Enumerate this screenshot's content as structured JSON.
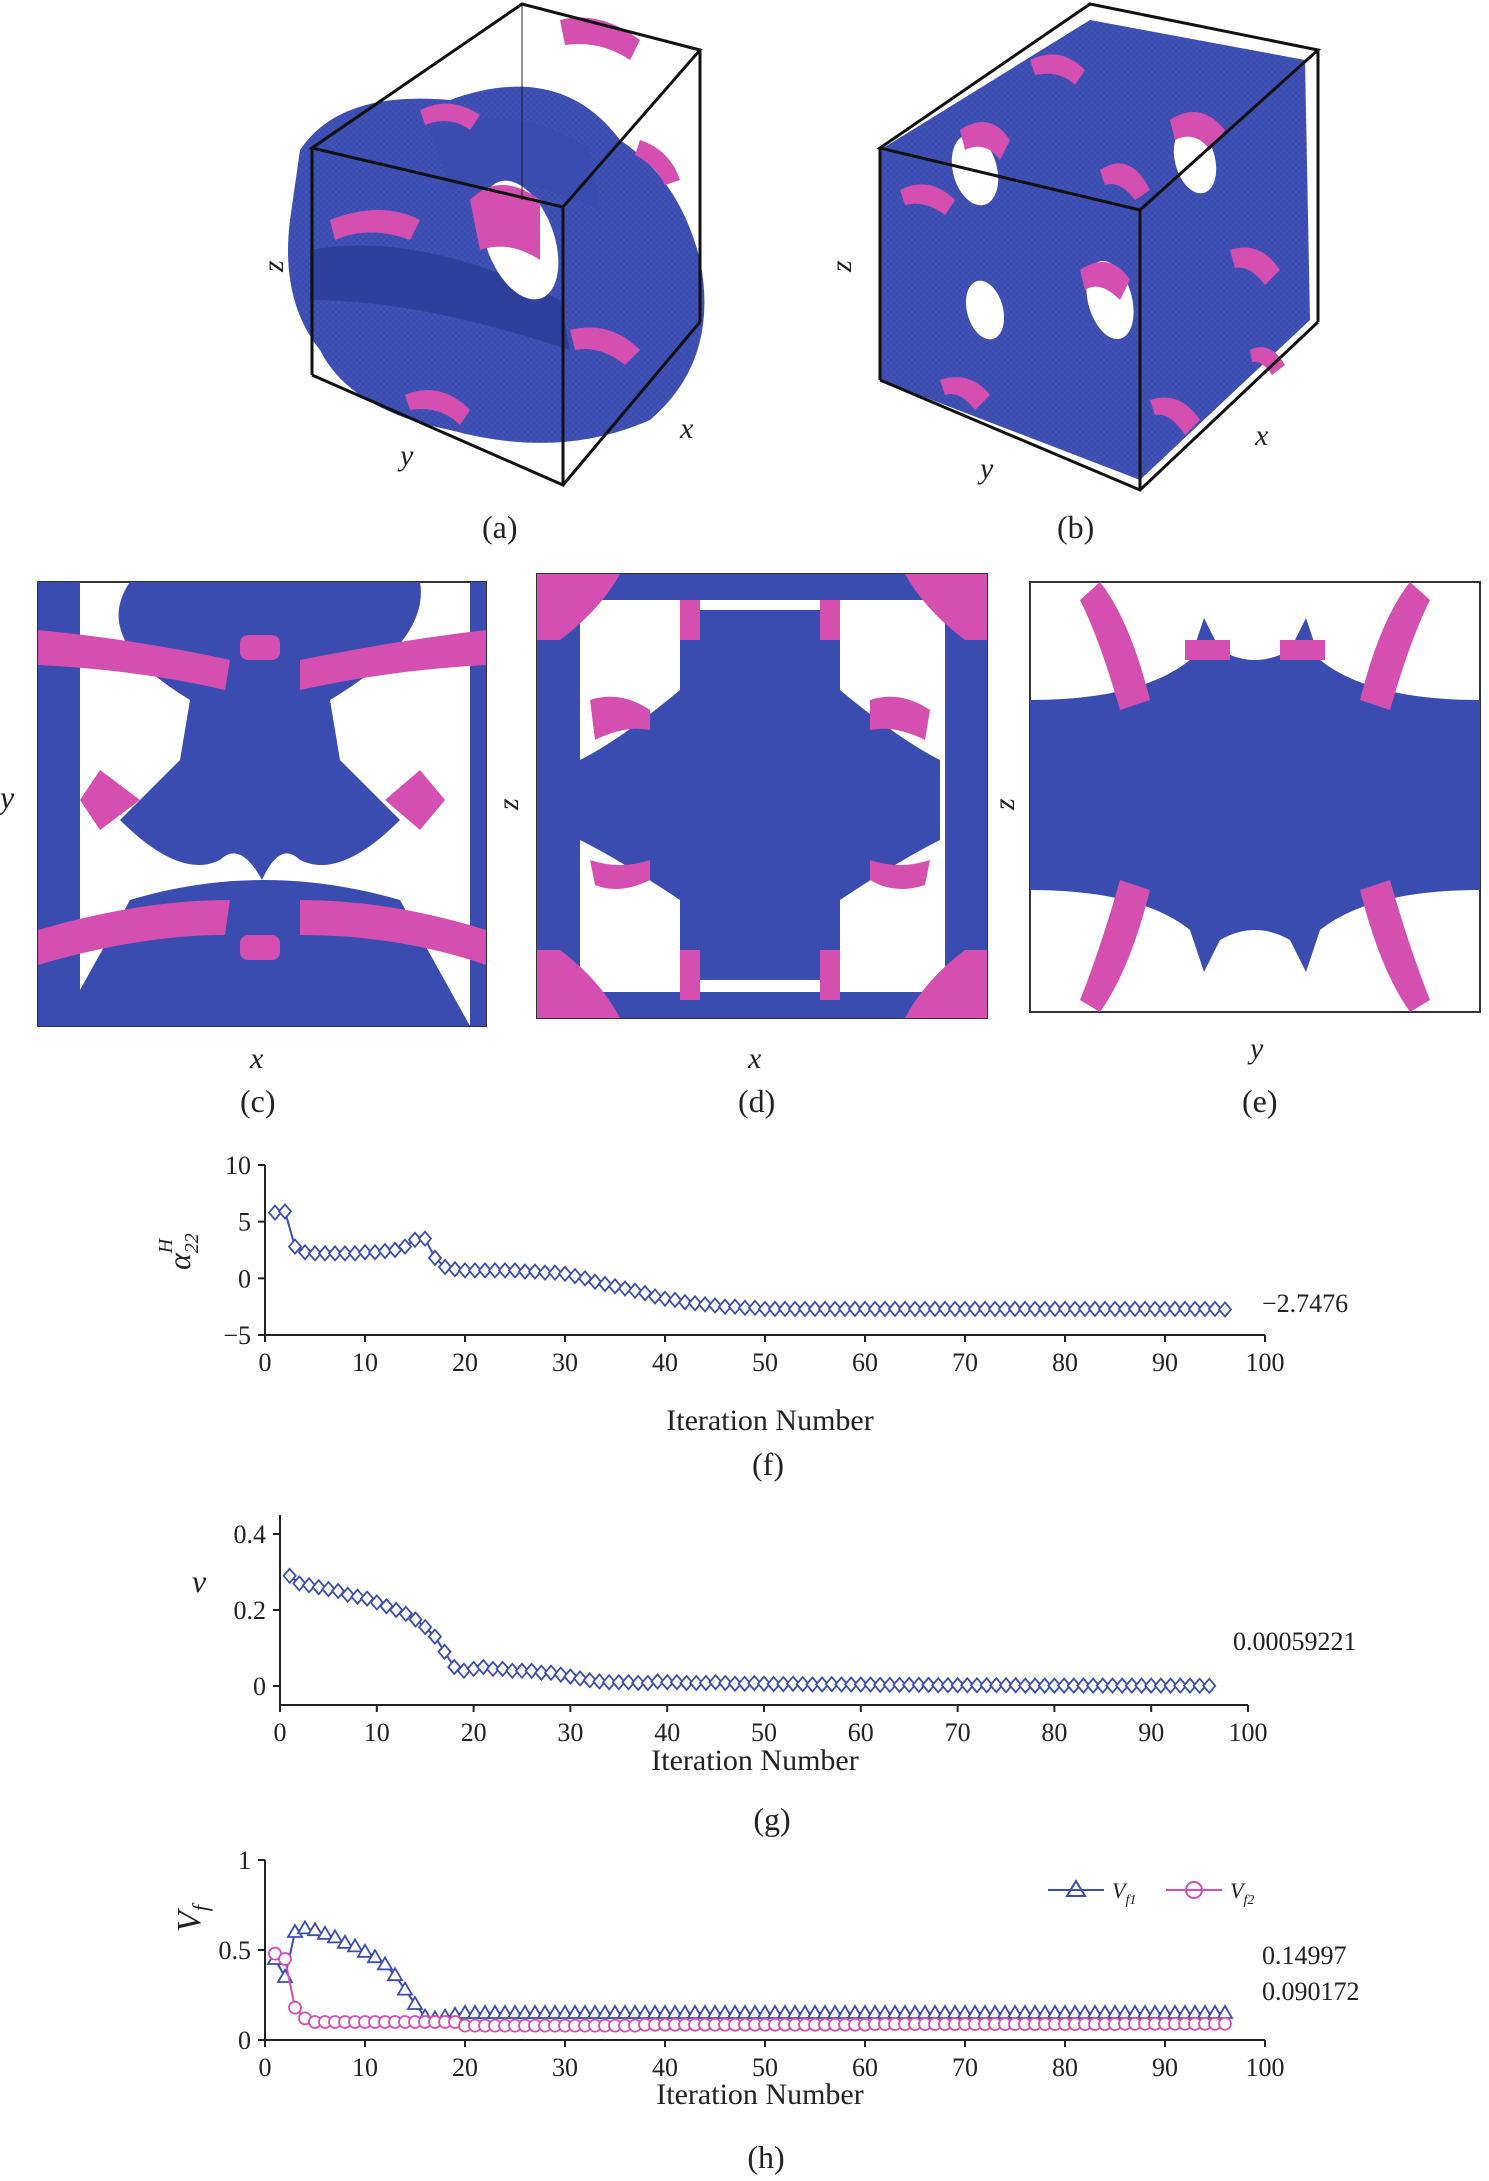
{
  "colors": {
    "phase1": "#3b4cb0",
    "phase2": "#d44fb0",
    "axis": "#222222",
    "box": "#111111"
  },
  "panels": {
    "a": {
      "label": "(a)",
      "axes": {
        "z": "z",
        "y": "y",
        "x": "x"
      }
    },
    "b": {
      "label": "(b)",
      "axes": {
        "z": "z",
        "y": "y",
        "x": "x"
      }
    },
    "c": {
      "label": "(c)",
      "vertical": "y",
      "horizontal": "x"
    },
    "d": {
      "label": "(d)",
      "vertical": "z",
      "horizontal": "x"
    },
    "e": {
      "label": "(e)",
      "vertical": "z",
      "horizontal": "y"
    }
  },
  "chart_data": [
    {
      "id": "f",
      "panel_label": "(f)",
      "type": "line",
      "ylabel": "α22H",
      "ylabel_main": "α",
      "ylabel_sub": "22",
      "ylabel_sup": "H",
      "xlabel": "Iteration Number",
      "xlim": [
        0,
        100
      ],
      "ylim": [
        -5,
        10
      ],
      "xticks": [
        0,
        10,
        20,
        30,
        40,
        50,
        60,
        70,
        80,
        90,
        100
      ],
      "yticks": [
        -5,
        0,
        5,
        10
      ],
      "final_value_label": "−2.7476",
      "series": [
        {
          "name": "α22H",
          "marker": "diamond",
          "color": "#3b4cb0",
          "x": [
            1,
            2,
            3,
            4,
            5,
            6,
            7,
            8,
            9,
            10,
            11,
            12,
            13,
            14,
            15,
            16,
            17,
            18,
            19,
            20,
            21,
            22,
            23,
            24,
            25,
            26,
            27,
            28,
            29,
            30,
            31,
            32,
            33,
            34,
            35,
            36,
            37,
            38,
            39,
            40,
            41,
            42,
            43,
            44,
            45,
            46,
            47,
            48,
            49,
            50,
            51,
            52,
            53,
            54,
            55,
            56,
            57,
            58,
            59,
            60,
            61,
            62,
            63,
            64,
            65,
            66,
            67,
            68,
            69,
            70,
            71,
            72,
            73,
            74,
            75,
            76,
            77,
            78,
            79,
            80,
            81,
            82,
            83,
            84,
            85,
            86,
            87,
            88,
            89,
            90,
            91,
            92,
            93,
            94,
            95,
            96
          ],
          "y": [
            5.8,
            5.9,
            2.8,
            2.3,
            2.2,
            2.2,
            2.2,
            2.2,
            2.2,
            2.3,
            2.3,
            2.4,
            2.5,
            2.8,
            3.4,
            3.5,
            1.8,
            1.0,
            0.8,
            0.7,
            0.7,
            0.7,
            0.7,
            0.7,
            0.7,
            0.6,
            0.6,
            0.5,
            0.5,
            0.4,
            0.2,
            0.0,
            -0.3,
            -0.5,
            -0.7,
            -0.9,
            -1.1,
            -1.3,
            -1.6,
            -1.8,
            -1.9,
            -2.1,
            -2.2,
            -2.3,
            -2.4,
            -2.5,
            -2.5,
            -2.6,
            -2.6,
            -2.7,
            -2.7,
            -2.7,
            -2.7,
            -2.7,
            -2.7,
            -2.7,
            -2.7,
            -2.7,
            -2.7,
            -2.7,
            -2.7,
            -2.7,
            -2.7,
            -2.7,
            -2.7,
            -2.7,
            -2.7,
            -2.7,
            -2.7,
            -2.7,
            -2.7,
            -2.7,
            -2.7,
            -2.7,
            -2.7,
            -2.7,
            -2.7,
            -2.7,
            -2.7,
            -2.7,
            -2.7,
            -2.7,
            -2.7,
            -2.7,
            -2.7,
            -2.7,
            -2.7,
            -2.7,
            -2.7,
            -2.7,
            -2.7,
            -2.7,
            -2.7,
            -2.7,
            -2.7,
            -2.7476
          ]
        }
      ]
    },
    {
      "id": "g",
      "panel_label": "(g)",
      "type": "line",
      "ylabel": "ν",
      "xlabel": "Iteration Number",
      "xlim": [
        0,
        100
      ],
      "ylim": [
        -0.05,
        0.45
      ],
      "xticks": [
        0,
        10,
        20,
        30,
        40,
        50,
        60,
        70,
        80,
        90,
        100
      ],
      "yticks": [
        0,
        0.2,
        0.4
      ],
      "ytick_labels": [
        "0",
        "0.2",
        "0.4"
      ],
      "final_value_label": "0.00059221",
      "series": [
        {
          "name": "ν",
          "marker": "diamond",
          "color": "#3b4cb0",
          "x": [
            1,
            2,
            3,
            4,
            5,
            6,
            7,
            8,
            9,
            10,
            11,
            12,
            13,
            14,
            15,
            16,
            17,
            18,
            19,
            20,
            21,
            22,
            23,
            24,
            25,
            26,
            27,
            28,
            29,
            30,
            31,
            32,
            33,
            34,
            35,
            36,
            37,
            38,
            39,
            40,
            41,
            42,
            43,
            44,
            45,
            46,
            47,
            48,
            49,
            50,
            51,
            52,
            53,
            54,
            55,
            56,
            57,
            58,
            59,
            60,
            61,
            62,
            63,
            64,
            65,
            66,
            67,
            68,
            69,
            70,
            71,
            72,
            73,
            74,
            75,
            76,
            77,
            78,
            79,
            80,
            81,
            82,
            83,
            84,
            85,
            86,
            87,
            88,
            89,
            90,
            91,
            92,
            93,
            94,
            95,
            96
          ],
          "y": [
            0.29,
            0.27,
            0.265,
            0.26,
            0.255,
            0.25,
            0.24,
            0.235,
            0.23,
            0.22,
            0.21,
            0.2,
            0.19,
            0.175,
            0.155,
            0.13,
            0.09,
            0.05,
            0.04,
            0.045,
            0.05,
            0.045,
            0.045,
            0.04,
            0.04,
            0.04,
            0.035,
            0.035,
            0.03,
            0.025,
            0.02,
            0.015,
            0.012,
            0.01,
            0.01,
            0.01,
            0.008,
            0.008,
            0.012,
            0.01,
            0.01,
            0.008,
            0.008,
            0.008,
            0.01,
            0.008,
            0.006,
            0.006,
            0.008,
            0.006,
            0.005,
            0.005,
            0.006,
            0.005,
            0.004,
            0.004,
            0.005,
            0.004,
            0.004,
            0.004,
            0.004,
            0.003,
            0.003,
            0.003,
            0.003,
            0.003,
            0.003,
            0.002,
            0.002,
            0.002,
            0.002,
            0.002,
            0.002,
            0.002,
            0.002,
            0.002,
            0.001,
            0.001,
            0.001,
            0.001,
            0.001,
            0.001,
            0.001,
            0.001,
            0.001,
            0.001,
            0.001,
            0.001,
            0.001,
            0.001,
            0.001,
            0.001,
            0.001,
            0.001,
            0.0008,
            0.00059221
          ]
        }
      ]
    },
    {
      "id": "h",
      "panel_label": "(h)",
      "type": "line",
      "ylabel": "Vf",
      "ylabel_main": "V",
      "ylabel_sub": "f",
      "xlabel": "Iteration Number",
      "xlim": [
        0,
        100
      ],
      "ylim": [
        0,
        1
      ],
      "xticks": [
        0,
        10,
        20,
        30,
        40,
        50,
        60,
        70,
        80,
        90,
        100
      ],
      "yticks": [
        0,
        0.5,
        1
      ],
      "ytick_labels": [
        "0",
        "0.5",
        "1"
      ],
      "final_value_labels": [
        "0.14997",
        "0.090172"
      ],
      "legend": {
        "position": "top-right",
        "entries": [
          "Vf1",
          "Vf2"
        ]
      },
      "series": [
        {
          "name": "Vf1",
          "label_main": "V",
          "label_sub": "f1",
          "marker": "triangle",
          "color": "#3b4cb0",
          "x": [
            1,
            2,
            3,
            4,
            5,
            6,
            7,
            8,
            9,
            10,
            11,
            12,
            13,
            14,
            15,
            16,
            17,
            18,
            19,
            20,
            21,
            22,
            23,
            24,
            25,
            26,
            27,
            28,
            29,
            30,
            31,
            32,
            33,
            34,
            35,
            36,
            37,
            38,
            39,
            40,
            41,
            42,
            43,
            44,
            45,
            46,
            47,
            48,
            49,
            50,
            51,
            52,
            53,
            54,
            55,
            56,
            57,
            58,
            59,
            60,
            61,
            62,
            63,
            64,
            65,
            66,
            67,
            68,
            69,
            70,
            71,
            72,
            73,
            74,
            75,
            76,
            77,
            78,
            79,
            80,
            81,
            82,
            83,
            84,
            85,
            86,
            87,
            88,
            89,
            90,
            91,
            92,
            93,
            94,
            95,
            96
          ],
          "y": [
            0.45,
            0.35,
            0.6,
            0.62,
            0.61,
            0.59,
            0.57,
            0.54,
            0.52,
            0.49,
            0.46,
            0.42,
            0.36,
            0.28,
            0.2,
            0.13,
            0.12,
            0.13,
            0.14,
            0.15,
            0.15,
            0.15,
            0.15,
            0.15,
            0.15,
            0.15,
            0.15,
            0.15,
            0.15,
            0.15,
            0.15,
            0.15,
            0.15,
            0.15,
            0.15,
            0.15,
            0.15,
            0.15,
            0.15,
            0.15,
            0.15,
            0.15,
            0.15,
            0.15,
            0.15,
            0.15,
            0.15,
            0.15,
            0.15,
            0.15,
            0.15,
            0.15,
            0.15,
            0.15,
            0.15,
            0.15,
            0.15,
            0.15,
            0.15,
            0.15,
            0.15,
            0.15,
            0.15,
            0.15,
            0.15,
            0.15,
            0.15,
            0.15,
            0.15,
            0.15,
            0.15,
            0.15,
            0.15,
            0.15,
            0.15,
            0.15,
            0.15,
            0.15,
            0.15,
            0.15,
            0.15,
            0.15,
            0.15,
            0.15,
            0.15,
            0.15,
            0.15,
            0.15,
            0.15,
            0.15,
            0.15,
            0.15,
            0.15,
            0.15,
            0.15,
            0.14997
          ]
        },
        {
          "name": "Vf2",
          "label_main": "V",
          "label_sub": "f2",
          "marker": "circle",
          "color": "#d44fb0",
          "x": [
            1,
            2,
            3,
            4,
            5,
            6,
            7,
            8,
            9,
            10,
            11,
            12,
            13,
            14,
            15,
            16,
            17,
            18,
            19,
            20,
            21,
            22,
            23,
            24,
            25,
            26,
            27,
            28,
            29,
            30,
            31,
            32,
            33,
            34,
            35,
            36,
            37,
            38,
            39,
            40,
            41,
            42,
            43,
            44,
            45,
            46,
            47,
            48,
            49,
            50,
            51,
            52,
            53,
            54,
            55,
            56,
            57,
            58,
            59,
            60,
            61,
            62,
            63,
            64,
            65,
            66,
            67,
            68,
            69,
            70,
            71,
            72,
            73,
            74,
            75,
            76,
            77,
            78,
            79,
            80,
            81,
            82,
            83,
            84,
            85,
            86,
            87,
            88,
            89,
            90,
            91,
            92,
            93,
            94,
            95,
            96
          ],
          "y": [
            0.48,
            0.45,
            0.18,
            0.12,
            0.1,
            0.1,
            0.1,
            0.1,
            0.1,
            0.1,
            0.1,
            0.1,
            0.1,
            0.1,
            0.1,
            0.1,
            0.1,
            0.1,
            0.1,
            0.08,
            0.08,
            0.08,
            0.08,
            0.08,
            0.08,
            0.08,
            0.08,
            0.08,
            0.08,
            0.08,
            0.08,
            0.08,
            0.08,
            0.08,
            0.08,
            0.08,
            0.08,
            0.085,
            0.085,
            0.085,
            0.085,
            0.085,
            0.085,
            0.085,
            0.085,
            0.085,
            0.085,
            0.085,
            0.085,
            0.085,
            0.085,
            0.085,
            0.085,
            0.085,
            0.085,
            0.085,
            0.085,
            0.085,
            0.085,
            0.085,
            0.088,
            0.088,
            0.088,
            0.088,
            0.088,
            0.088,
            0.088,
            0.088,
            0.088,
            0.088,
            0.088,
            0.088,
            0.088,
            0.088,
            0.088,
            0.088,
            0.088,
            0.088,
            0.088,
            0.088,
            0.088,
            0.088,
            0.088,
            0.088,
            0.088,
            0.09,
            0.09,
            0.09,
            0.09,
            0.09,
            0.09,
            0.09,
            0.09,
            0.09,
            0.09,
            0.090172
          ]
        }
      ]
    }
  ]
}
